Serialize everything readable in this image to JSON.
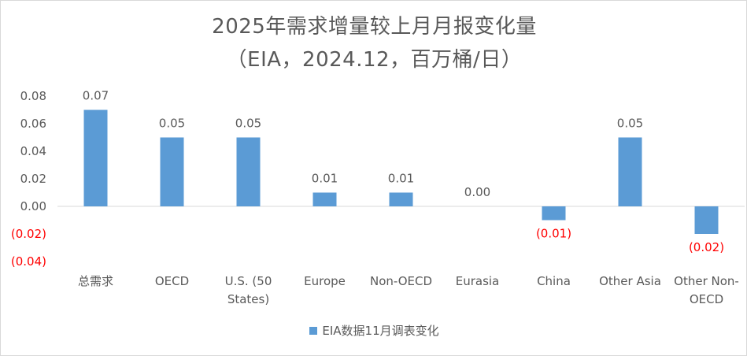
{
  "chart_data": {
    "type": "bar",
    "title": "2025年需求增量较上月月报变化量",
    "subtitle": "（EIA，2024.12，百万桶/日）",
    "categories": [
      [
        "总需求"
      ],
      [
        "OECD"
      ],
      [
        "U.S. (50",
        "States)"
      ],
      [
        "Europe"
      ],
      [
        "Non-OECD"
      ],
      [
        "Eurasia"
      ],
      [
        "China"
      ],
      [
        "Other Asia"
      ],
      [
        "Other Non-",
        "OECD"
      ]
    ],
    "series": [
      {
        "name": "EIA数据11月调表变化",
        "values": [
          0.07,
          0.05,
          0.05,
          0.01,
          0.01,
          0.0,
          -0.01,
          0.05,
          -0.02
        ],
        "labels": [
          "0.07",
          "0.05",
          "0.05",
          "0.01",
          "0.01",
          "0.00",
          "(0.01)",
          "0.05",
          "(0.02)"
        ]
      }
    ],
    "ylim": [
      -0.04,
      0.08
    ],
    "yticks": [
      0.08,
      0.06,
      0.04,
      0.02,
      0.0,
      -0.02,
      -0.04
    ],
    "ytick_labels": [
      "0.08",
      "0.06",
      "0.04",
      "0.02",
      "0.00",
      "(0.02)",
      "(0.04)"
    ],
    "grid": false,
    "legend": "bottom",
    "colors": {
      "bar": "#5b9bd5",
      "negative_label": "#ff0000",
      "text": "#595959",
      "axis": "#d9d9d9"
    }
  }
}
